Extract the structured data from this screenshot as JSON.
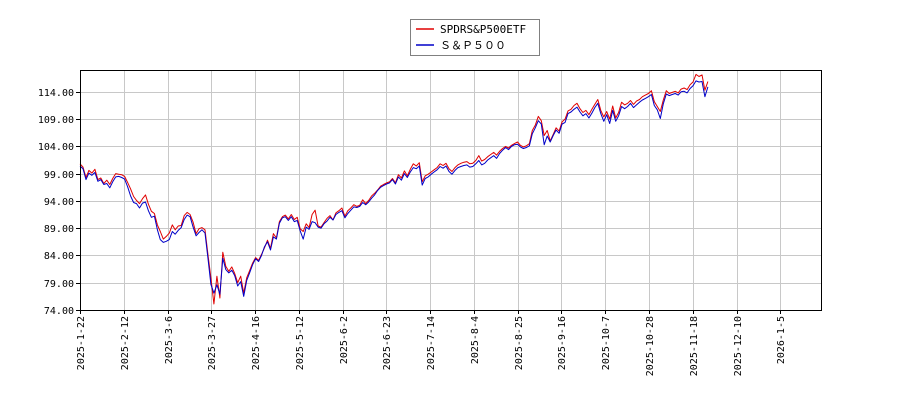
{
  "chart_data": {
    "type": "line",
    "title": "",
    "xlabel": "",
    "ylabel": "",
    "ylim": [
      74.0,
      118.0
    ],
    "yticks": [
      "74.00",
      "79.00",
      "84.00",
      "89.00",
      "94.00",
      "99.00",
      "104.00",
      "109.00",
      "114.00"
    ],
    "xticks": [
      "2025-1-22",
      "2025-2-12",
      "2025-3-6",
      "2025-3-27",
      "2025-4-16",
      "2025-5-12",
      "2025-6-2",
      "2025-6-23",
      "2025-7-14",
      "2025-8-4",
      "2025-8-25",
      "2025-9-16",
      "2025-10-7",
      "2025-10-28",
      "2025-11-18",
      "2025-12-10",
      "2026-1-5"
    ],
    "grid": true,
    "legend_position": "top-center",
    "x_count": 250,
    "series": [
      {
        "name": "SPDRS&P500ETF",
        "color": "#e00000",
        "values": [
          100.8,
          100.2,
          98.3,
          99.6,
          99.1,
          99.8,
          97.9,
          98.2,
          97.2,
          97.8,
          97.0,
          98.1,
          99.0,
          98.9,
          98.8,
          98.5,
          97.4,
          96.2,
          94.8,
          94.1,
          93.5,
          94.4,
          95.1,
          93.4,
          92.1,
          91.7,
          89.6,
          88.4,
          87.0,
          87.5,
          88.1,
          89.6,
          88.7,
          89.4,
          89.5,
          91.3,
          91.9,
          91.5,
          90.1,
          88.0,
          88.9,
          89.1,
          88.7,
          84.1,
          79.9,
          75.1,
          80.2,
          76.2,
          84.6,
          82.0,
          81.1,
          81.9,
          80.7,
          79.0,
          80.2,
          77.1,
          79.9,
          81.2,
          82.6,
          83.6,
          83.1,
          84.2,
          85.4,
          86.8,
          85.3,
          88.0,
          87.2,
          90.2,
          91.1,
          91.4,
          90.7,
          91.5,
          90.6,
          91.0,
          88.9,
          88.4,
          89.8,
          89.1,
          91.5,
          92.3,
          89.4,
          89.2,
          90.0,
          90.8,
          91.3,
          90.5,
          91.8,
          92.2,
          92.7,
          91.2,
          92.2,
          92.7,
          93.3,
          93.0,
          93.2,
          94.2,
          93.5,
          94.1,
          94.9,
          95.4,
          96.0,
          96.7,
          97.0,
          97.3,
          97.5,
          98.1,
          97.3,
          98.8,
          98.2,
          99.5,
          98.6,
          99.8,
          100.8,
          100.4,
          101.0,
          97.5,
          98.6,
          98.9,
          99.3,
          99.7,
          100.1,
          100.8,
          100.5,
          100.9,
          99.9,
          99.4,
          100.1,
          100.6,
          100.9,
          101.1,
          101.2,
          100.8,
          100.9,
          101.4,
          102.3,
          101.3,
          101.6,
          102.1,
          102.5,
          102.9,
          102.4,
          103.1,
          103.6,
          104.0,
          103.7,
          104.2,
          104.5,
          104.8,
          104.2,
          103.9,
          104.1,
          104.5,
          106.9,
          107.9,
          109.5,
          108.7,
          106.0,
          106.9,
          105.0,
          106.2,
          107.4,
          106.8,
          108.5,
          109.0,
          110.5,
          110.8,
          111.5,
          111.9,
          110.9,
          110.2,
          110.6,
          109.8,
          110.8,
          111.7,
          112.6,
          110.6,
          109.4,
          110.4,
          109.0,
          111.4,
          109.2,
          110.2,
          112.1,
          111.6,
          111.9,
          112.4,
          111.7,
          112.3,
          112.6,
          113.1,
          113.4,
          113.7,
          114.2,
          112.2,
          111.3,
          110.4,
          112.5,
          114.2,
          113.7,
          113.9,
          114.1,
          113.8,
          114.5,
          114.7,
          114.4,
          115.3,
          115.8,
          117.2,
          116.8,
          117.1,
          114.3,
          115.9
        ]
      },
      {
        "name": "Ｓ＆Ｐ５００",
        "color": "#0000c8",
        "values": [
          100.4,
          99.9,
          97.9,
          99.1,
          98.7,
          99.2,
          97.6,
          97.9,
          97.0,
          97.2,
          96.4,
          97.5,
          98.4,
          98.5,
          98.3,
          98.0,
          96.6,
          94.9,
          93.7,
          93.5,
          92.7,
          93.6,
          93.8,
          92.2,
          91.0,
          91.2,
          88.7,
          86.9,
          86.4,
          86.6,
          86.9,
          88.4,
          87.9,
          88.6,
          89.1,
          90.6,
          91.4,
          91.1,
          89.2,
          87.6,
          88.2,
          88.7,
          88.1,
          83.4,
          78.7,
          77.1,
          78.6,
          76.9,
          83.5,
          81.4,
          80.8,
          81.3,
          80.3,
          78.4,
          79.2,
          76.5,
          79.4,
          80.8,
          82.3,
          83.4,
          82.9,
          84.0,
          85.6,
          86.5,
          85.0,
          87.4,
          87.0,
          89.9,
          90.9,
          91.1,
          90.4,
          91.1,
          90.2,
          90.4,
          88.5,
          87.0,
          89.2,
          88.8,
          90.2,
          90.0,
          89.2,
          89.0,
          89.8,
          90.3,
          91.0,
          90.5,
          91.5,
          91.9,
          92.2,
          90.9,
          91.7,
          92.3,
          92.9,
          92.8,
          93.0,
          93.7,
          93.3,
          93.8,
          94.5,
          95.1,
          95.9,
          96.5,
          96.8,
          97.1,
          97.3,
          97.9,
          97.1,
          98.4,
          97.8,
          99.0,
          98.3,
          99.3,
          100.1,
          99.9,
          100.4,
          96.9,
          98.1,
          98.4,
          98.9,
          99.3,
          99.7,
          100.3,
          100.0,
          100.4,
          99.4,
          98.9,
          99.6,
          100.1,
          100.3,
          100.5,
          100.6,
          100.2,
          100.3,
          100.8,
          101.4,
          100.6,
          100.9,
          101.5,
          101.9,
          102.3,
          101.8,
          102.7,
          103.3,
          103.8,
          103.4,
          104.0,
          104.3,
          104.4,
          103.9,
          103.6,
          103.8,
          104.1,
          106.3,
          107.4,
          108.7,
          108.1,
          104.3,
          105.9,
          104.8,
          106.0,
          107.0,
          106.4,
          108.1,
          108.4,
          110.0,
          110.3,
          110.8,
          111.2,
          110.3,
          109.6,
          110.0,
          109.2,
          110.1,
          111.1,
          111.9,
          110.0,
          108.6,
          109.8,
          108.2,
          110.6,
          108.6,
          109.6,
          111.3,
          110.9,
          111.3,
          111.9,
          111.1,
          111.6,
          112.1,
          112.5,
          112.8,
          113.1,
          113.5,
          111.5,
          110.7,
          109.1,
          111.8,
          113.6,
          113.3,
          113.5,
          113.7,
          113.4,
          114.0,
          114.1,
          113.8,
          114.6,
          115.1,
          116.0,
          115.8,
          115.9,
          113.1,
          114.9
        ]
      }
    ]
  }
}
